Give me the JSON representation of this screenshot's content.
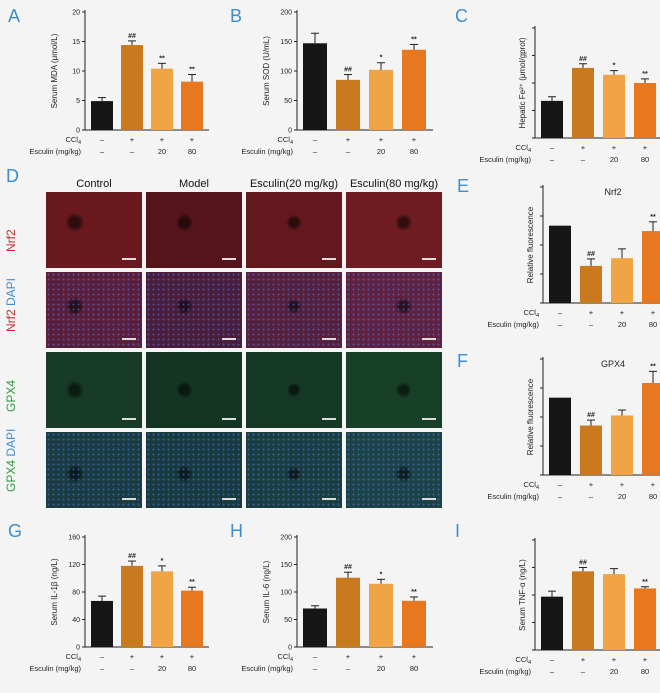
{
  "colors": {
    "control": "#161616",
    "model": "#c97a1e",
    "esc20": "#f0a445",
    "esc80": "#e8781f",
    "letter": "#3e8ed0",
    "red": "#c62828",
    "blue": "#3e8ed0",
    "green": "#2e9a3e"
  },
  "conditions": {
    "ccl4_label": "CCl",
    "ccl4_sub": "4",
    "esculin_label": "Esculin (mg/kg)",
    "ccl4": [
      "–",
      "+",
      "+",
      "+"
    ],
    "esculin": [
      "–",
      "–",
      "20",
      "80"
    ]
  },
  "micrograph": {
    "letter": "D",
    "columns": [
      "Control",
      "Model",
      "Esculin(20 mg/kg)",
      "Esculin(80 mg/kg)"
    ],
    "rows": [
      {
        "parts": [
          {
            "t": "Nrf2",
            "c": "red"
          }
        ],
        "kind": "nrf2"
      },
      {
        "parts": [
          {
            "t": "Nrf2",
            "c": "red"
          },
          {
            "t": " DAPI",
            "c": "blue"
          }
        ],
        "kind": "nrf2dapi"
      },
      {
        "parts": [
          {
            "t": "GPX4",
            "c": "green"
          }
        ],
        "kind": "gpx4"
      },
      {
        "parts": [
          {
            "t": "GPX4",
            "c": "green"
          },
          {
            "t": " DAPI",
            "c": "blue"
          }
        ],
        "kind": "gpx4dapi"
      }
    ]
  },
  "chart_data": [
    {
      "id": "A",
      "letter": "A",
      "type": "bar",
      "ylabel": "Serum MDA (μmol/L)",
      "ylim": [
        0,
        20
      ],
      "yticks": [
        0,
        5,
        10,
        15,
        20
      ],
      "values": [
        4.9,
        14.4,
        10.4,
        8.2
      ],
      "errors": [
        0.6,
        0.7,
        0.9,
        1.2
      ],
      "marks": [
        "",
        "##",
        "**",
        "**"
      ]
    },
    {
      "id": "B",
      "letter": "B",
      "type": "bar",
      "ylabel": "Serum SOD (U/mL)",
      "ylim": [
        0,
        200
      ],
      "yticks": [
        0,
        50,
        100,
        150,
        200
      ],
      "values": [
        147,
        85,
        102,
        136
      ],
      "errors": [
        17,
        9,
        12,
        9
      ],
      "marks": [
        "",
        "##",
        "*",
        "**"
      ]
    },
    {
      "id": "C",
      "letter": "C",
      "type": "bar",
      "ylabel": "Hepatic Fe²⁺ (μmol/gprot)",
      "ylim": [
        0,
        8
      ],
      "yticks": [],
      "values": [
        2.7,
        5.1,
        4.6,
        4.0
      ],
      "errors": [
        0.3,
        0.3,
        0.3,
        0.3
      ],
      "marks": [
        "",
        "##",
        "*",
        "**"
      ]
    },
    {
      "id": "E",
      "letter": "E",
      "type": "bar",
      "title": "Nrf2",
      "ylabel": "Relative fluorescence",
      "ylim": [
        0,
        1.5
      ],
      "yticks": [],
      "values": [
        1.0,
        0.48,
        0.58,
        0.93
      ],
      "errors": [
        0,
        0.09,
        0.12,
        0.12
      ],
      "marks": [
        "",
        "##",
        "",
        "**"
      ]
    },
    {
      "id": "F",
      "letter": "F",
      "type": "bar",
      "title": "GPX4",
      "ylabel": "Relative fluorescence",
      "ylim": [
        0,
        1.5
      ],
      "yticks": [],
      "values": [
        1.0,
        0.64,
        0.77,
        1.19
      ],
      "errors": [
        0,
        0.07,
        0.07,
        0.15
      ],
      "marks": [
        "",
        "##",
        "",
        "**"
      ]
    },
    {
      "id": "G",
      "letter": "G",
      "type": "bar",
      "ylabel": "Serum IL-1β (ng/L)",
      "ylim": [
        0,
        160
      ],
      "yticks": [
        0,
        40,
        80,
        120,
        160
      ],
      "values": [
        67,
        118,
        110,
        82
      ],
      "errors": [
        7,
        7,
        8,
        5
      ],
      "marks": [
        "",
        "##",
        "*",
        "**"
      ]
    },
    {
      "id": "H",
      "letter": "H",
      "type": "bar",
      "ylabel": "Serum IL-6 (ng/L)",
      "ylim": [
        0,
        200
      ],
      "yticks": [
        0,
        50,
        100,
        150,
        200
      ],
      "values": [
        70,
        126,
        115,
        84
      ],
      "errors": [
        5,
        10,
        8,
        7
      ],
      "marks": [
        "",
        "##",
        "*",
        "**"
      ]
    },
    {
      "id": "I",
      "letter": "I",
      "type": "bar",
      "ylabel": "Serum TNF-α (ng/L)",
      "ylim": [
        0,
        1000
      ],
      "yticks": [],
      "values": [
        485,
        715,
        690,
        560
      ],
      "errors": [
        50,
        35,
        50,
        15
      ],
      "marks": [
        "",
        "##",
        "",
        "**"
      ]
    }
  ]
}
